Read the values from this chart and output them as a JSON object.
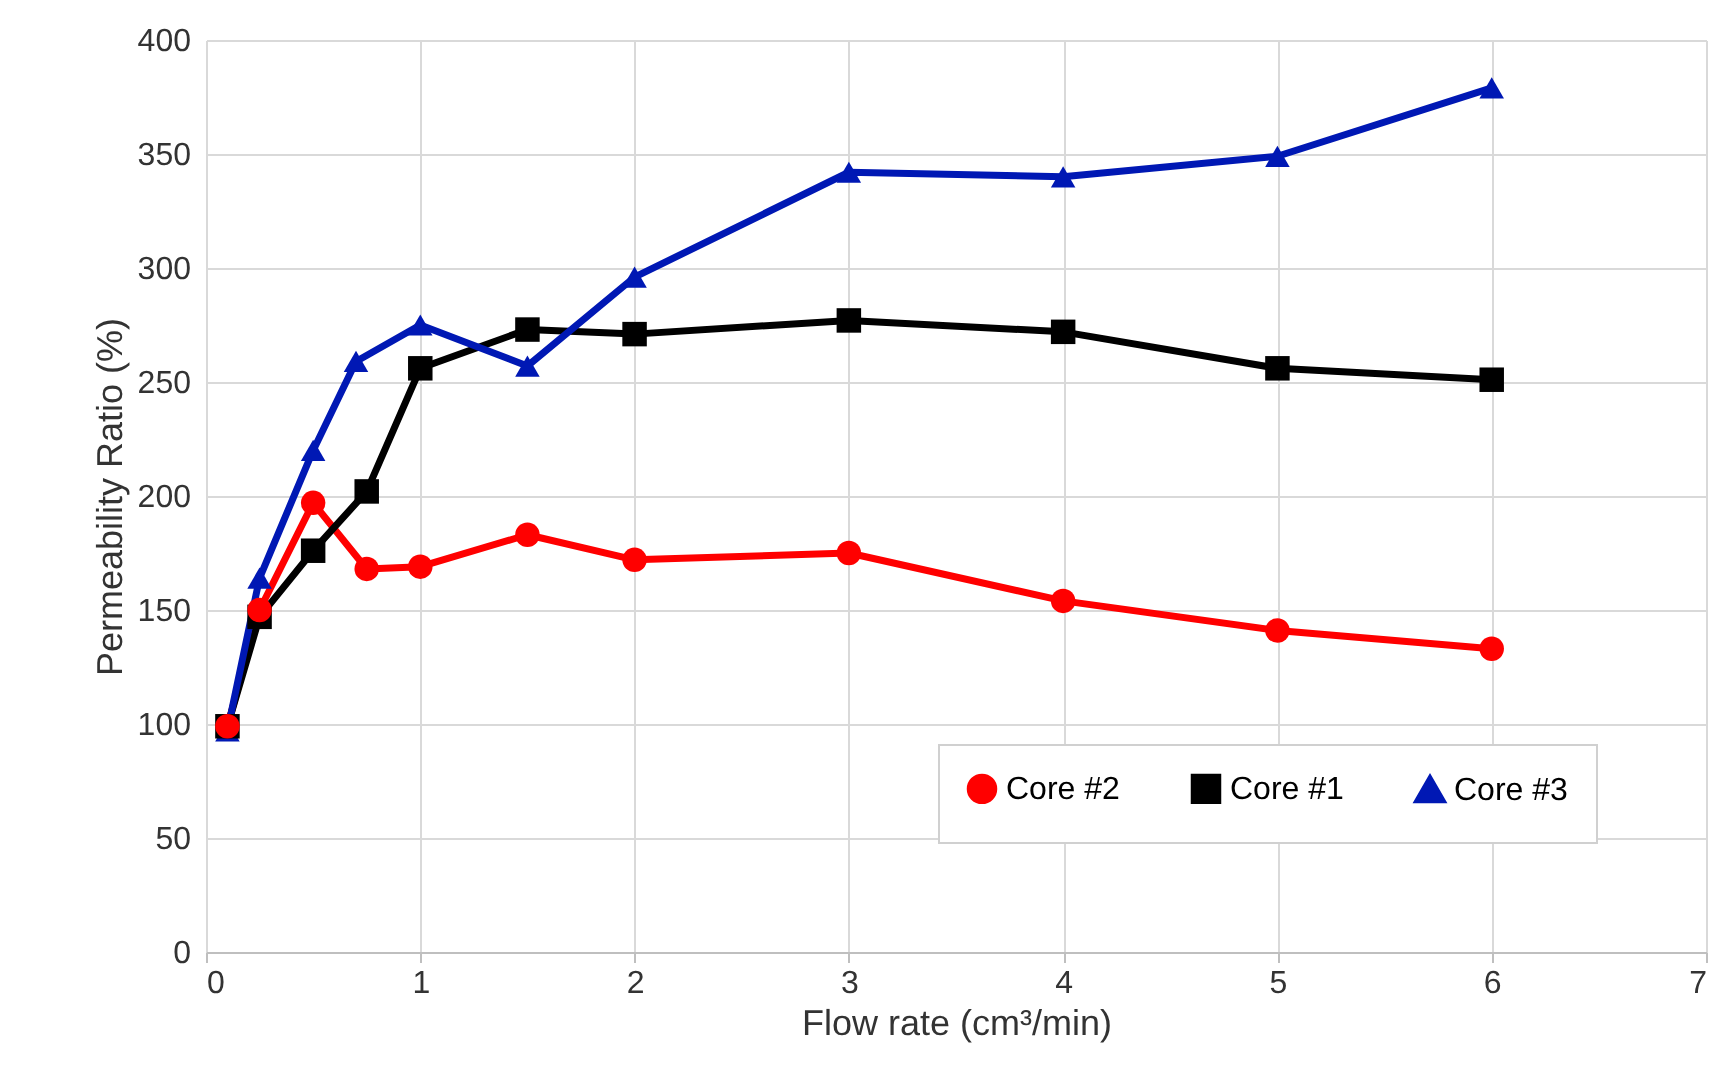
{
  "chart_data": {
    "type": "line",
    "xlabel": "Flow rate (cm³/min)",
    "ylabel": "Permeability Ratio (%)",
    "xlim": [
      0,
      7
    ],
    "xticks": [
      0,
      1,
      2,
      3,
      4,
      5,
      6,
      7
    ],
    "ylim": [
      0,
      400
    ],
    "yticks": [
      0,
      50,
      100,
      150,
      200,
      250,
      300,
      350,
      400
    ],
    "grid": true,
    "legend": "bottom right",
    "marker": "circle",
    "line_style": "solid",
    "series": [
      {
        "name": "Core #2",
        "color": "#ff0000",
        "marker": "circle",
        "x": [
          0.1,
          0.25,
          0.5,
          0.75,
          1,
          1.5,
          2,
          3,
          4,
          5,
          6
        ],
        "values": [
          99,
          150,
          197,
          168,
          169,
          183,
          172,
          175,
          154,
          141,
          133
        ]
      },
      {
        "name": "Core #1",
        "color": "#000000",
        "marker": "square",
        "x": [
          0.1,
          0.25,
          0.5,
          0.75,
          1,
          1.5,
          2,
          3,
          4,
          5,
          6
        ],
        "values": [
          99,
          147,
          176,
          202,
          256,
          273,
          271,
          277,
          272,
          256,
          251
        ]
      },
      {
        "name": "Core #3",
        "color": "#0018b4",
        "marker": "triangle",
        "x": [
          0.1,
          0.25,
          0.5,
          0.7,
          1,
          1.5,
          2,
          3,
          4,
          5,
          6
        ],
        "values": [
          97,
          164,
          220,
          259,
          275,
          257,
          296,
          342,
          340,
          349,
          379
        ]
      }
    ]
  }
}
